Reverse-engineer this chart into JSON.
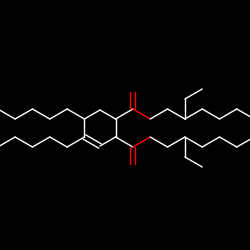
{
  "background_color": "#000000",
  "line_color": "#ffffff",
  "oxygen_color": "#ff0000",
  "line_width": 1.0,
  "figsize": [
    2.5,
    2.5
  ],
  "dpi": 100
}
